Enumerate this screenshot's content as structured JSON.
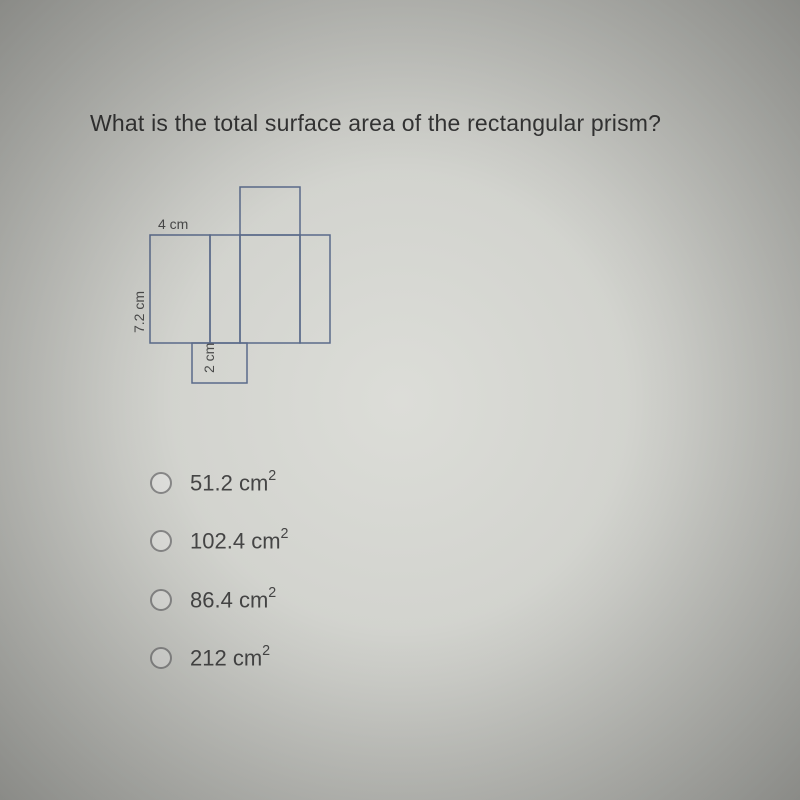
{
  "question": "What is the total surface area of the rectangular prism?",
  "diagram": {
    "unit_scale": 15,
    "stroke": "#5a6a8a",
    "stroke_width": 1.5,
    "labels": {
      "width": "4 cm",
      "height": "7.2 cm",
      "depth": "2 cm"
    },
    "label_color": "#4a4a4a",
    "label_fontsize": 14
  },
  "options": [
    {
      "value": "51.2",
      "unit": "cm",
      "exp": "2"
    },
    {
      "value": "102.4",
      "unit": "cm",
      "exp": "2"
    },
    {
      "value": "86.4",
      "unit": "cm",
      "exp": "2"
    },
    {
      "value": "212",
      "unit": "cm",
      "exp": "2"
    }
  ]
}
